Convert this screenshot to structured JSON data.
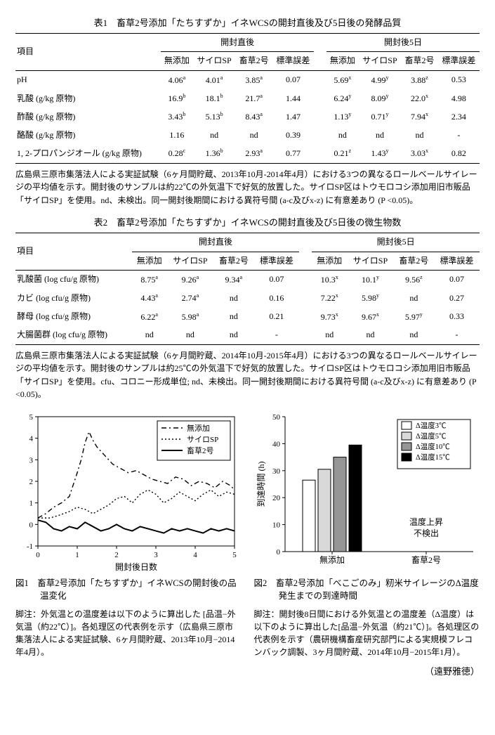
{
  "table1": {
    "title": "表1　畜草2号添加「たちすずか」イネWCSの開封直後及び5日後の発酵品質",
    "header_item": "項目",
    "group1": "開封直後",
    "group2": "開封後5日",
    "cols": [
      "無添加",
      "サイロSP",
      "畜草2号",
      "標準誤差",
      "無添加",
      "サイロSP",
      "畜草2号",
      "標準誤差"
    ],
    "rows": [
      {
        "label": "pH",
        "cells": [
          [
            "4.06",
            "a"
          ],
          [
            "4.01",
            "a"
          ],
          [
            "3.85",
            "a"
          ],
          [
            "0.07",
            ""
          ],
          [
            "5.69",
            "x"
          ],
          [
            "4.99",
            "y"
          ],
          [
            "3.88",
            "z"
          ],
          [
            "0.53",
            ""
          ]
        ]
      },
      {
        "label": "乳酸 (g/kg 原物)",
        "cells": [
          [
            "16.9",
            "b"
          ],
          [
            "18.1",
            "b"
          ],
          [
            "21.7",
            "a"
          ],
          [
            "1.44",
            ""
          ],
          [
            "6.24",
            "y"
          ],
          [
            "8.09",
            "y"
          ],
          [
            "22.0",
            "x"
          ],
          [
            "4.98",
            ""
          ]
        ]
      },
      {
        "label": "酢酸 (g/kg 原物)",
        "cells": [
          [
            "3.43",
            "b"
          ],
          [
            "5.13",
            "b"
          ],
          [
            "8.43",
            "a"
          ],
          [
            "1.47",
            ""
          ],
          [
            "1.13",
            "y"
          ],
          [
            "0.71",
            "y"
          ],
          [
            "7.94",
            "x"
          ],
          [
            "2.34",
            ""
          ]
        ]
      },
      {
        "label": "酪酸 (g/kg 原物)",
        "cells": [
          [
            "1.16",
            ""
          ],
          [
            "nd",
            ""
          ],
          [
            "nd",
            ""
          ],
          [
            "0.39",
            ""
          ],
          [
            "nd",
            ""
          ],
          [
            "nd",
            ""
          ],
          [
            "nd",
            ""
          ],
          [
            "-",
            ""
          ]
        ]
      },
      {
        "label": "1, 2-プロパンジオール (g/kg 原物)",
        "cells": [
          [
            "0.28",
            "c"
          ],
          [
            "1.36",
            "b"
          ],
          [
            "2.93",
            "a"
          ],
          [
            "0.77",
            ""
          ],
          [
            "0.21",
            "z"
          ],
          [
            "1.43",
            "y"
          ],
          [
            "3.03",
            "x"
          ],
          [
            "0.82",
            ""
          ]
        ]
      }
    ],
    "caption": "広島県三原市集落法人による実証試験（6ヶ月間貯蔵、2013年10月-2014年4月）における3つの異なるロールベールサイレージの平均値を示す。開封後のサンプルは約22℃の外気温下で好気的放置した。サイロSP区はトウモロコシ添加用旧市販品「サイロSP」を使用。nd、未検出。同一開封後期間における異符号間 (a-c及びx-z) に有意差あり (P <0.05)。"
  },
  "table2": {
    "title": "表2　畜草2号添加「たちすずか」イネWCSの開封直後及び5日後の微生物数",
    "header_item": "項目",
    "group1": "開封直後",
    "group2": "開封後5日",
    "cols": [
      "無添加",
      "サイロSP",
      "畜草2号",
      "標準誤差",
      "無添加",
      "サイロSP",
      "畜草2号",
      "標準誤差"
    ],
    "rows": [
      {
        "label": "乳酸菌 (log cfu/g 原物)",
        "cells": [
          [
            "8.75",
            "a"
          ],
          [
            "9.26",
            "a"
          ],
          [
            "9.34",
            "a"
          ],
          [
            "0.07",
            ""
          ],
          [
            "10.3",
            "x"
          ],
          [
            "10.1",
            "y"
          ],
          [
            "9.56",
            "z"
          ],
          [
            "0.07",
            ""
          ]
        ]
      },
      {
        "label": "カビ (log cfu/g 原物)",
        "cells": [
          [
            "4.43",
            "a"
          ],
          [
            "2.74",
            "a"
          ],
          [
            "nd",
            ""
          ],
          [
            "0.16",
            ""
          ],
          [
            "7.22",
            "x"
          ],
          [
            "5.98",
            "y"
          ],
          [
            "nd",
            ""
          ],
          [
            "0.27",
            ""
          ]
        ]
      },
      {
        "label": "酵母 (log cfu/g 原物)",
        "cells": [
          [
            "6.22",
            "a"
          ],
          [
            "5.98",
            "a"
          ],
          [
            "nd",
            ""
          ],
          [
            "0.21",
            ""
          ],
          [
            "9.73",
            "x"
          ],
          [
            "9.67",
            "x"
          ],
          [
            "5.97",
            "y"
          ],
          [
            "0.33",
            ""
          ]
        ]
      },
      {
        "label": "大腸菌群 (log cfu/g 原物)",
        "cells": [
          [
            "nd",
            ""
          ],
          [
            "nd",
            ""
          ],
          [
            "nd",
            ""
          ],
          [
            "-",
            ""
          ],
          [
            "nd",
            ""
          ],
          [
            "nd",
            ""
          ],
          [
            "nd",
            ""
          ],
          [
            "-",
            ""
          ]
        ]
      }
    ],
    "caption": "広島県三原市集落法人による実証試験（6ヶ月間貯蔵、2014年10月-2015年4月）における3つの異なるロールベールサイレージの平均値を示す。開封後のサンプルは約25℃の外気温下で好気的放置した。サイロSP区はトウモロコシ添加用旧市販品「サイロSP」を使用。cfu、コロニー形成単位;  nd、未検出。同一開封後期間における異符号間 (a-c及びx-z) に有意差あり (P <0.05)。"
  },
  "fig1": {
    "type": "line",
    "title": "図1　畜草2号添加「たちすずか」イネWCSの開封後の品温変化",
    "footnote": "脚注：外気温との温度差は以下のように算出した [品温−外気温（約22℃）]。各処理区の代表例を示す（広島県三原市集落法人による実証試験、6ヶ月間貯蔵、2013年10月−2014年4月）。",
    "xlabel": "開封後日数",
    "xlim": [
      0,
      5
    ],
    "xticks": [
      0,
      1,
      2,
      3,
      4,
      5
    ],
    "ylim": [
      -1,
      5
    ],
    "yticks": [
      -1,
      0,
      1,
      2,
      3,
      4,
      5
    ],
    "legend": [
      "無添加",
      "サイロSP",
      "畜草2号"
    ],
    "legend_styles": [
      "dashdot",
      "dot",
      "solid"
    ],
    "colors": {
      "axis": "#000",
      "line": "#000",
      "bg": "#fff"
    },
    "series": [
      {
        "name": "無添加",
        "style": "dashdot",
        "pts": [
          [
            0,
            0.3
          ],
          [
            0.2,
            0.5
          ],
          [
            0.4,
            0.8
          ],
          [
            0.6,
            1.0
          ],
          [
            0.8,
            1.3
          ],
          [
            1.0,
            2.4
          ],
          [
            1.1,
            3.0
          ],
          [
            1.2,
            3.8
          ],
          [
            1.3,
            4.3
          ],
          [
            1.4,
            3.9
          ],
          [
            1.5,
            3.6
          ],
          [
            1.7,
            3.2
          ],
          [
            1.9,
            2.8
          ],
          [
            2.1,
            2.6
          ],
          [
            2.3,
            2.4
          ],
          [
            2.5,
            2.5
          ],
          [
            2.7,
            2.3
          ],
          [
            2.9,
            2.1
          ],
          [
            3.1,
            2.0
          ],
          [
            3.3,
            1.9
          ],
          [
            3.5,
            2.2
          ],
          [
            3.7,
            2.1
          ],
          [
            3.9,
            1.8
          ],
          [
            4.1,
            2.0
          ],
          [
            4.3,
            1.9
          ],
          [
            4.5,
            1.7
          ],
          [
            4.7,
            2.0
          ],
          [
            4.9,
            1.8
          ],
          [
            5.0,
            1.6
          ]
        ]
      },
      {
        "name": "サイロSP",
        "style": "dot",
        "pts": [
          [
            0,
            0.3
          ],
          [
            0.3,
            0.3
          ],
          [
            0.5,
            0.4
          ],
          [
            0.8,
            0.6
          ],
          [
            1.0,
            0.8
          ],
          [
            1.2,
            0.7
          ],
          [
            1.4,
            0.5
          ],
          [
            1.6,
            0.7
          ],
          [
            1.8,
            0.9
          ],
          [
            2.0,
            1.2
          ],
          [
            2.2,
            1.3
          ],
          [
            2.4,
            1.0
          ],
          [
            2.6,
            1.4
          ],
          [
            2.8,
            1.6
          ],
          [
            3.0,
            1.4
          ],
          [
            3.2,
            1.0
          ],
          [
            3.4,
            1.2
          ],
          [
            3.6,
            1.5
          ],
          [
            3.8,
            1.3
          ],
          [
            4.0,
            1.1
          ],
          [
            4.2,
            1.4
          ],
          [
            4.4,
            1.6
          ],
          [
            4.6,
            1.3
          ],
          [
            4.8,
            1.5
          ],
          [
            5.0,
            1.4
          ]
        ]
      },
      {
        "name": "畜草2号",
        "style": "solid",
        "pts": [
          [
            0,
            0.2
          ],
          [
            0.2,
            0.1
          ],
          [
            0.4,
            -0.2
          ],
          [
            0.6,
            -0.3
          ],
          [
            0.8,
            -0.1
          ],
          [
            1.0,
            -0.2
          ],
          [
            1.2,
            0.1
          ],
          [
            1.4,
            -0.1
          ],
          [
            1.6,
            -0.3
          ],
          [
            1.8,
            -0.2
          ],
          [
            2.0,
            0.0
          ],
          [
            2.2,
            -0.2
          ],
          [
            2.4,
            -0.3
          ],
          [
            2.6,
            -0.1
          ],
          [
            2.8,
            -0.2
          ],
          [
            3.0,
            -0.3
          ],
          [
            3.2,
            -0.4
          ],
          [
            3.4,
            -0.2
          ],
          [
            3.6,
            -0.3
          ],
          [
            3.8,
            -0.2
          ],
          [
            4.0,
            -0.3
          ],
          [
            4.2,
            -0.4
          ],
          [
            4.4,
            -0.2
          ],
          [
            4.6,
            -0.3
          ],
          [
            4.8,
            -0.2
          ],
          [
            5.0,
            -0.3
          ]
        ]
      }
    ]
  },
  "fig2": {
    "type": "bar",
    "title": "図2　畜草2号添加「べこごのみ」籾米サイレージのΔ温度発生までの到達時間",
    "footnote": "脚注：開封後8日間における外気温との温度差（Δ温度）は以下のように算出した[品温−外気温（約21℃）]。各処理区の代表例を示す（農研機構畜産研究部門による実規模フレコンバック調製、3ヶ月間貯蔵、2014年10月−2015年1月）。",
    "ylabel": "到達時間 (h)",
    "ylim": [
      0,
      50
    ],
    "yticks": [
      0,
      10,
      20,
      30,
      40,
      50
    ],
    "groups": [
      "無添加",
      "畜草2号"
    ],
    "legend": [
      "Δ温度3℃",
      "Δ温度5℃",
      "Δ温度10℃",
      "Δ温度15℃"
    ],
    "bar_colors": [
      "#ffffff",
      "#d9d9d9",
      "#969696",
      "#000000"
    ],
    "border_color": "#000",
    "note": "温度上昇\n不検出",
    "values": {
      "無添加": [
        26.5,
        30.5,
        35,
        39.5
      ],
      "畜草2号": null
    }
  },
  "author": "（遠野雅徳）"
}
